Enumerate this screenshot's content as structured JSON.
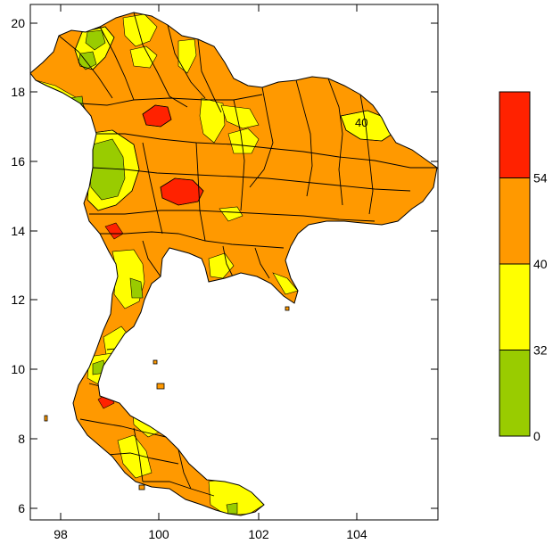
{
  "map": {
    "x_ticks": [
      "98",
      "100",
      "102",
      "104"
    ],
    "y_ticks": [
      "6",
      "8",
      "10",
      "12",
      "14",
      "16",
      "18",
      "20"
    ],
    "contour_label": "40"
  },
  "legend": {
    "labels": [
      "0",
      "32",
      "40",
      "54"
    ],
    "classes": [
      {
        "range": [
          0,
          32
        ],
        "color": "#99cc00"
      },
      {
        "range": [
          32,
          40
        ],
        "color": "#ffff00"
      },
      {
        "range": [
          40,
          54
        ],
        "color": "#ff9900"
      },
      {
        "range": [
          54,
          null
        ],
        "color": "#ff2200"
      }
    ]
  },
  "colors": {
    "green": "#99cc00",
    "yellow": "#ffff00",
    "orange": "#ff9900",
    "red": "#ff2200"
  }
}
